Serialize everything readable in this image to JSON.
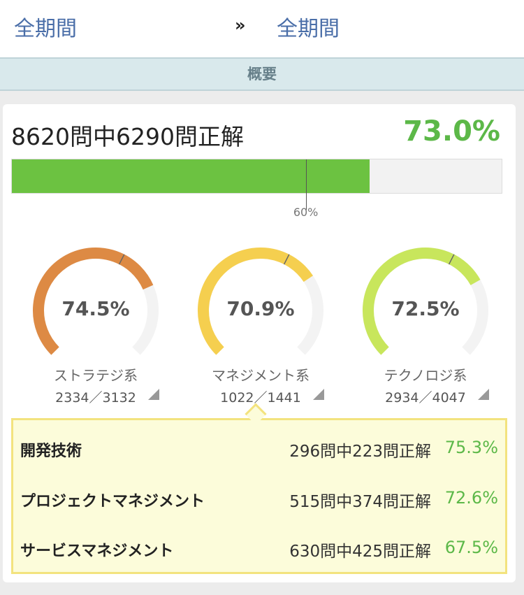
{
  "header": {
    "period_from": "全期間",
    "arrow": "»",
    "period_to": "全期間"
  },
  "section_title": "概要",
  "summary": {
    "text": "8620問中6290問正解",
    "rate_text": "73.0%",
    "rate_value": 73.0,
    "threshold_value": 60,
    "threshold_label": "60%"
  },
  "colors": {
    "accent_green": "#5cb848",
    "bar_green": "#6cc241",
    "gauge_track": "#f3f3f3"
  },
  "gauges": [
    {
      "name": "ストラテジ系",
      "count": "2334／3132",
      "rate_text": "74.5%",
      "rate_value": 74.5,
      "color": "#dd8a44"
    },
    {
      "name": "マネジメント系",
      "count": "1022／1441",
      "rate_text": "70.9%",
      "rate_value": 70.9,
      "color": "#f5cf4f"
    },
    {
      "name": "テクノロジ系",
      "count": "2934／4047",
      "rate_text": "72.5%",
      "rate_value": 72.5,
      "color": "#c8e65c"
    }
  ],
  "details": [
    {
      "name": "開発技術",
      "count": "296問中223問正解",
      "rate": "75.3%"
    },
    {
      "name": "プロジェクトマネジメント",
      "count": "515問中374問正解",
      "rate": "72.6%"
    },
    {
      "name": "サービスマネジメント",
      "count": "630問中425問正解",
      "rate": "67.5%"
    }
  ]
}
